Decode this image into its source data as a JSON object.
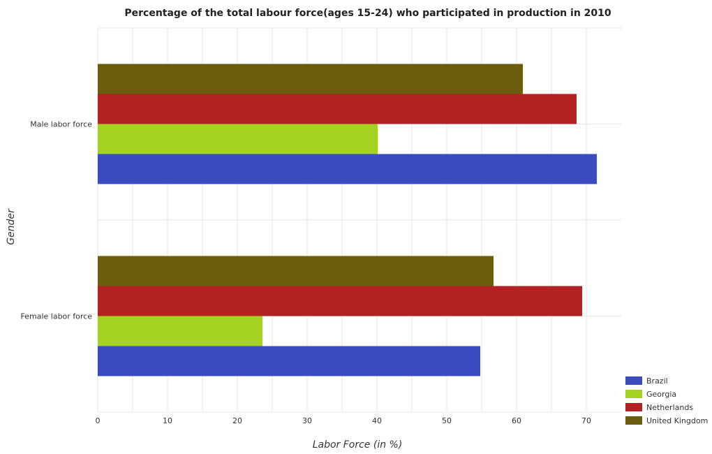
{
  "chart_data": {
    "type": "bar",
    "orientation": "horizontal",
    "title": "Percentage of the total labour force(ages 15-24) who participated in production in 2010",
    "xlabel": "Labor Force (in %)",
    "ylabel": "Gender",
    "xlim": [
      0,
      75
    ],
    "xticks": [
      0,
      10,
      20,
      30,
      40,
      50,
      60,
      70
    ],
    "grid": true,
    "legend_position": "bottom-right",
    "categories": [
      "Female labor force",
      "Male labor force"
    ],
    "series": [
      {
        "name": "Brazil",
        "color": "#3b4cc0",
        "values": [
          54.8,
          71.5
        ]
      },
      {
        "name": "Georgia",
        "color": "#a6d323",
        "values": [
          23.6,
          40.1
        ]
      },
      {
        "name": "Netherlands",
        "color": "#b22222",
        "values": [
          69.4,
          68.6
        ]
      },
      {
        "name": "United Kingdom",
        "color": "#6b5d0e",
        "values": [
          56.7,
          60.9
        ]
      }
    ]
  }
}
